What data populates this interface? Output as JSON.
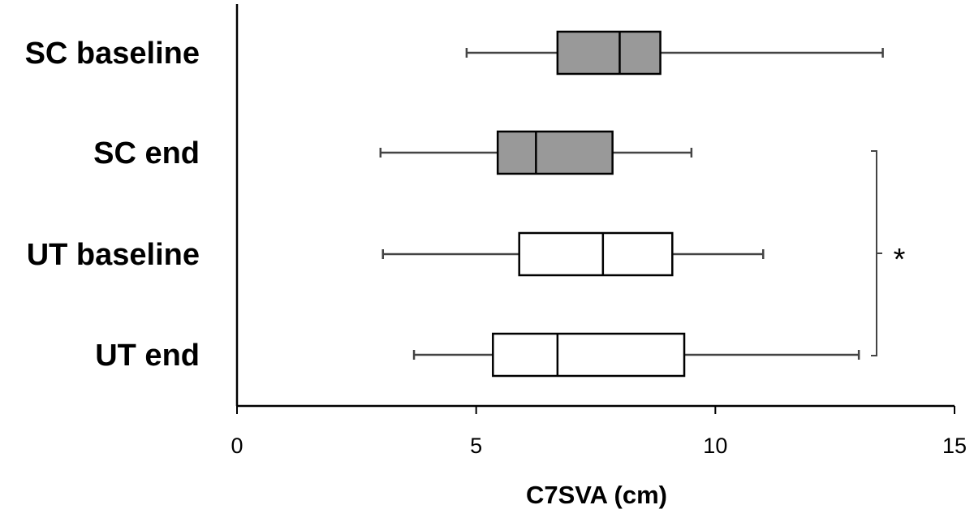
{
  "chart_data": {
    "type": "boxplot",
    "orientation": "horizontal",
    "xlabel": "C7SVA (cm)",
    "xlim": [
      0,
      15
    ],
    "xticks": [
      0,
      5,
      10,
      15
    ],
    "grid": false,
    "series": [
      {
        "name": "SC baseline",
        "min": 4.8,
        "q1": 6.7,
        "median": 8.0,
        "q3": 8.85,
        "max": 13.5,
        "fill": "#999999"
      },
      {
        "name": "SC end",
        "min": 3.0,
        "q1": 5.45,
        "median": 6.25,
        "q3": 7.85,
        "max": 9.5,
        "fill": "#999999"
      },
      {
        "name": "UT baseline",
        "min": 3.05,
        "q1": 5.9,
        "median": 7.65,
        "q3": 9.1,
        "max": 11.0,
        "fill": "#ffffff"
      },
      {
        "name": "UT end",
        "min": 3.7,
        "q1": 5.35,
        "median": 6.7,
        "q3": 9.35,
        "max": 13.0,
        "fill": "#ffffff"
      }
    ],
    "annotations": [
      {
        "type": "bracket",
        "from": "SC end",
        "to": "UT end",
        "label": "*"
      }
    ]
  }
}
